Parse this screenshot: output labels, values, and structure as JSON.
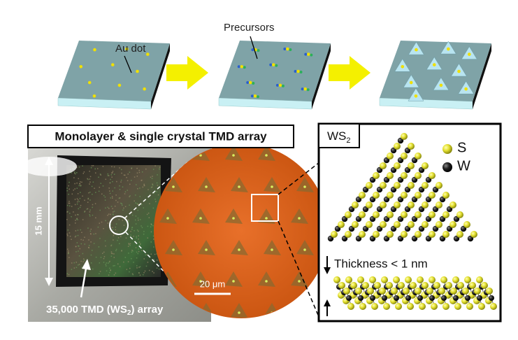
{
  "schematic": {
    "au_dot_label": "Au dot",
    "precursors_label": "Precursors"
  },
  "photo": {
    "banner": "Monolayer & single crystal TMD array",
    "size_label": "15 mm",
    "array_label": [
      "35,000 TMD (WS",
      "2",
      ") array"
    ],
    "scale_bar": "20 μm"
  },
  "structure": {
    "title": [
      "WS",
      "2"
    ],
    "legend": [
      "S",
      "W"
    ],
    "thickness": "Thickness < 1 nm"
  }
}
